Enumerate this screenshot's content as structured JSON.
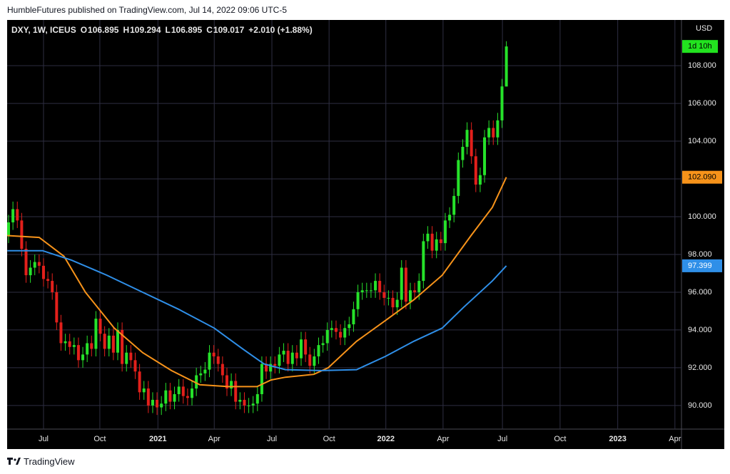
{
  "header": {
    "publisher": "HumbleFutures published on TradingView.com, Jul 14, 2022 09:06 UTC-5"
  },
  "footer": {
    "brand": "TradingView"
  },
  "chart_data": {
    "type": "candlestick",
    "symbol": "DXY, 1W, ICEUS",
    "legend_labels": [
      "O",
      "H",
      "L",
      "C"
    ],
    "change": "+2.010 (+1.88%)",
    "currency": "USD",
    "countdown": "1d 10h",
    "countdown_color": "#22e31f",
    "grid": true,
    "grid_color": "#2e2e42",
    "xlim": [
      -0.33,
      154.1
    ],
    "xticks": [
      {
        "value": 8.0,
        "label": "Jul"
      },
      {
        "value": 20.9,
        "label": "Oct"
      },
      {
        "value": 34.2,
        "label": "2021"
      },
      {
        "value": 47.1,
        "label": "Apr"
      },
      {
        "value": 60.3,
        "label": "Jul"
      },
      {
        "value": 73.4,
        "label": "Oct"
      },
      {
        "value": 86.4,
        "label": "2022"
      },
      {
        "value": 99.5,
        "label": "Apr"
      },
      {
        "value": 113.1,
        "label": "Jul"
      },
      {
        "value": 126.3,
        "label": "Oct"
      },
      {
        "value": 139.5,
        "label": "2023"
      },
      {
        "value": 152.6,
        "label": "Apr"
      }
    ],
    "ylim": [
      88.75,
      110.42
    ],
    "yticks": [
      {
        "value": 90,
        "label": "90.000"
      },
      {
        "value": 92,
        "label": "92.000"
      },
      {
        "value": 94,
        "label": "94.000"
      },
      {
        "value": 96,
        "label": "96.000"
      },
      {
        "value": 98,
        "label": "98.000"
      },
      {
        "value": 100,
        "label": "100.000"
      },
      {
        "value": 102,
        "label": "102.000"
      },
      {
        "value": 104,
        "label": "104.000"
      },
      {
        "value": 106,
        "label": "106.000"
      },
      {
        "value": 108,
        "label": "108.000"
      }
    ],
    "series": [
      {
        "up_color": "#26e22a",
        "down_color": "#e3201b",
        "open": [
          99.0,
          99.7,
          100.4,
          99.8,
          98.3,
          96.9,
          97.3,
          97.6,
          97.4,
          96.7,
          96.6,
          96.0,
          94.4,
          93.3,
          93.4,
          93.1,
          93.2,
          92.4,
          92.7,
          93.3,
          93.0,
          94.6,
          93.8,
          93.0,
          93.7,
          92.8,
          94.0,
          92.2,
          92.8,
          92.4,
          91.8,
          90.7,
          90.9,
          90.0,
          90.3,
          89.9,
          90.1,
          90.8,
          90.2,
          90.6,
          91.0,
          90.5,
          90.4,
          90.9,
          91.6,
          91.7,
          91.9,
          92.8,
          92.6,
          92.2,
          91.6,
          90.9,
          91.3,
          90.2,
          90.3,
          90.0,
          90.0,
          90.1,
          90.6,
          92.2,
          91.8,
          92.2,
          92.1,
          92.7,
          92.9,
          92.2,
          92.8,
          92.5,
          93.5,
          92.7,
          92.1,
          92.6,
          93.2,
          93.3,
          94.0,
          94.1,
          93.9,
          93.6,
          94.1,
          94.3,
          95.1,
          96.0,
          96.1,
          96.1,
          96.1,
          96.6,
          96.0,
          95.7,
          95.7,
          95.2,
          95.6,
          97.3,
          95.5,
          96.1,
          96.0,
          96.6,
          98.7,
          99.1,
          98.2,
          98.8,
          98.6,
          99.8,
          100.1,
          101.1,
          103.0,
          103.7,
          104.6,
          103.2,
          101.7,
          102.2,
          104.2,
          104.7,
          104.2,
          105.1,
          106.895
        ],
        "high": [
          100.1,
          100.8,
          100.8,
          100.2,
          98.7,
          97.7,
          98.0,
          98.0,
          97.8,
          97.1,
          97.0,
          96.4,
          94.8,
          93.8,
          93.8,
          93.6,
          93.6,
          93.1,
          93.7,
          93.7,
          95.0,
          95.0,
          94.2,
          94.1,
          94.1,
          94.4,
          94.4,
          93.2,
          93.2,
          92.8,
          92.2,
          91.3,
          91.3,
          90.7,
          90.7,
          90.5,
          91.2,
          91.2,
          91.0,
          91.4,
          91.4,
          90.9,
          91.3,
          92.0,
          92.1,
          92.3,
          93.2,
          93.2,
          93.0,
          92.6,
          92.0,
          91.7,
          91.7,
          90.7,
          90.7,
          90.4,
          90.5,
          91.0,
          92.6,
          92.6,
          92.6,
          92.6,
          93.1,
          93.3,
          93.3,
          93.2,
          93.2,
          93.9,
          93.9,
          93.1,
          93.0,
          93.6,
          93.7,
          94.4,
          94.5,
          94.5,
          94.3,
          94.5,
          94.7,
          95.5,
          96.4,
          96.5,
          96.5,
          96.5,
          97.0,
          97.0,
          96.4,
          96.1,
          96.1,
          96.0,
          97.7,
          97.7,
          96.5,
          96.5,
          97.0,
          99.1,
          99.5,
          99.5,
          99.2,
          99.2,
          100.2,
          100.5,
          101.5,
          103.4,
          104.1,
          105.0,
          105.0,
          103.6,
          102.6,
          104.6,
          105.1,
          105.1,
          105.5,
          107.3,
          109.294
        ],
        "low": [
          98.6,
          99.3,
          99.4,
          97.9,
          96.5,
          96.5,
          96.9,
          97.0,
          96.3,
          96.2,
          95.6,
          94.0,
          92.9,
          92.9,
          92.7,
          92.7,
          92.0,
          92.0,
          92.3,
          92.6,
          92.6,
          93.4,
          92.6,
          92.6,
          92.4,
          92.4,
          91.8,
          91.8,
          92.0,
          91.4,
          90.3,
          90.3,
          89.6,
          89.6,
          89.5,
          89.5,
          89.7,
          89.8,
          89.8,
          90.2,
          90.1,
          90.0,
          90.0,
          90.5,
          91.2,
          91.3,
          91.5,
          92.2,
          91.8,
          91.2,
          90.5,
          90.5,
          89.8,
          89.8,
          89.6,
          89.6,
          89.6,
          89.7,
          90.2,
          91.4,
          91.4,
          91.7,
          91.7,
          92.3,
          91.8,
          91.8,
          92.1,
          92.1,
          92.3,
          91.7,
          91.7,
          92.2,
          92.8,
          92.9,
          93.6,
          93.5,
          93.2,
          93.2,
          93.7,
          93.9,
          94.7,
          95.6,
          95.7,
          95.7,
          95.7,
          95.6,
          95.3,
          95.3,
          94.8,
          94.8,
          95.2,
          95.1,
          95.1,
          95.6,
          95.6,
          96.2,
          98.3,
          97.8,
          97.8,
          98.2,
          98.2,
          99.4,
          99.7,
          100.7,
          102.6,
          103.3,
          102.8,
          101.3,
          101.3,
          101.8,
          103.8,
          103.8,
          103.8,
          104.7,
          106.895
        ],
        "close": [
          99.7,
          100.4,
          99.8,
          98.3,
          96.9,
          97.3,
          97.6,
          97.4,
          96.7,
          96.6,
          96.0,
          94.4,
          93.3,
          93.4,
          93.1,
          93.2,
          92.4,
          92.7,
          93.3,
          93.0,
          94.6,
          93.8,
          93.0,
          93.7,
          92.8,
          94.0,
          92.2,
          92.8,
          92.4,
          91.8,
          90.7,
          90.9,
          90.0,
          90.3,
          89.9,
          90.1,
          90.8,
          90.2,
          90.6,
          91.0,
          90.5,
          90.4,
          90.9,
          91.6,
          91.7,
          91.9,
          92.8,
          92.6,
          92.2,
          91.6,
          90.9,
          91.3,
          90.2,
          90.3,
          90.0,
          90.0,
          90.1,
          90.6,
          92.2,
          91.8,
          92.2,
          92.1,
          92.7,
          92.9,
          92.2,
          92.8,
          92.5,
          93.5,
          92.7,
          92.1,
          92.6,
          93.2,
          93.3,
          94.0,
          94.1,
          93.9,
          93.6,
          94.1,
          94.3,
          95.1,
          96.0,
          96.1,
          96.1,
          96.1,
          96.6,
          96.0,
          95.7,
          95.7,
          95.2,
          95.6,
          97.3,
          95.5,
          96.1,
          96.0,
          96.6,
          98.7,
          99.1,
          98.2,
          98.8,
          98.6,
          99.8,
          100.1,
          101.1,
          103.0,
          103.7,
          104.6,
          103.2,
          101.7,
          102.2,
          104.2,
          104.7,
          104.2,
          105.1,
          106.9,
          109.017
        ]
      }
    ],
    "lines": [
      {
        "color": "#f7931a",
        "label_color": "#000000",
        "last_label": "102.090",
        "x": [
          -0.3,
          7.0,
          12.7,
          17.6,
          24.2,
          30.7,
          37.3,
          43.8,
          50.3,
          56.9,
          60.1,
          63.4,
          69.9,
          73.2,
          79.7,
          86.3,
          92.8,
          99.3,
          105.9,
          110.8,
          114
        ],
        "values": [
          99.0,
          98.9,
          97.9,
          96.0,
          94.1,
          92.8,
          91.85,
          91.1,
          91.0,
          91.0,
          91.35,
          91.5,
          91.65,
          92.0,
          93.4,
          94.5,
          95.6,
          96.9,
          99.0,
          100.5,
          102.09
        ]
      },
      {
        "color": "#2f8fe8",
        "label_color": "#ffffff",
        "last_label": "97.399",
        "x": [
          -0.3,
          7.8,
          14.4,
          22.5,
          30.7,
          38.9,
          47.1,
          53.6,
          58.5,
          63.4,
          71.6,
          79.7,
          86.3,
          92.8,
          99.3,
          104.2,
          110.8,
          114
        ],
        "values": [
          98.2,
          98.2,
          97.7,
          96.9,
          96.0,
          95.1,
          94.1,
          93.0,
          92.2,
          91.9,
          91.85,
          91.9,
          92.6,
          93.4,
          94.1,
          95.2,
          96.6,
          97.399
        ]
      }
    ]
  }
}
